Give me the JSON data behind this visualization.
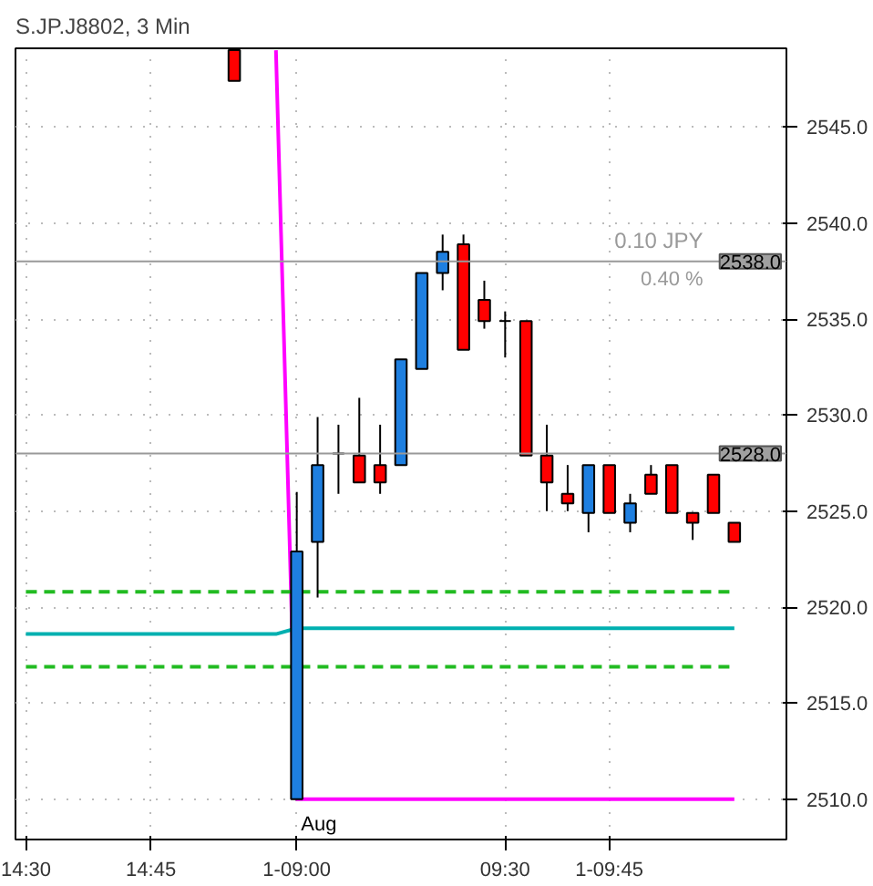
{
  "chart_data": {
    "type": "candlestick",
    "title": "S.JP.J8802, 3 Min",
    "categories": [
      "14:30",
      null,
      null,
      null,
      null,
      null,
      "14:45",
      null,
      null,
      null,
      null,
      null,
      null,
      "1-09:00",
      null,
      null,
      null,
      null,
      null,
      null,
      null,
      null,
      null,
      "09:30",
      null,
      null,
      null,
      null,
      "1-09:45",
      null,
      null,
      null,
      null,
      null,
      null,
      null,
      null
    ],
    "ohlc": [
      null,
      null,
      null,
      null,
      null,
      null,
      null,
      null,
      null,
      null,
      [
        2549.0,
        2549.0,
        2547.4,
        2547.4
      ],
      null,
      null,
      [
        2510.0,
        2526.0,
        2510.0,
        2522.9
      ],
      [
        2523.4,
        2529.9,
        2520.5,
        2527.4
      ],
      [
        2528.0,
        2529.5,
        2525.9,
        2528.0
      ],
      [
        2527.9,
        2530.9,
        2526.5,
        2526.5
      ],
      [
        2527.4,
        2529.5,
        2525.9,
        2526.5
      ],
      [
        2527.4,
        2532.9,
        2527.4,
        2532.9
      ],
      [
        2532.4,
        2537.4,
        2532.4,
        2537.4
      ],
      [
        2537.4,
        2539.4,
        2536.5,
        2538.5
      ],
      [
        2538.9,
        2539.4,
        2533.4,
        2533.4
      ],
      [
        2536.0,
        2537.0,
        2534.5,
        2534.9
      ],
      [
        2534.9,
        2535.4,
        2533.0,
        2534.9
      ],
      [
        2534.9,
        2534.9,
        2527.9,
        2527.9
      ],
      [
        2527.9,
        2529.5,
        2525.0,
        2526.5
      ],
      [
        2525.9,
        2527.4,
        2525.0,
        2525.4
      ],
      [
        2524.9,
        2527.4,
        2523.9,
        2527.4
      ],
      [
        2527.4,
        2527.4,
        2524.9,
        2524.9
      ],
      [
        2524.4,
        2525.9,
        2523.9,
        2525.4
      ],
      [
        2526.9,
        2527.4,
        2525.9,
        2525.9
      ],
      [
        2527.4,
        2527.4,
        2524.9,
        2524.9
      ],
      [
        2524.9,
        2524.9,
        2523.5,
        2524.4
      ],
      [
        2526.9,
        2526.9,
        2524.9,
        2524.9
      ],
      [
        2524.4,
        2524.4,
        2523.4,
        2523.4
      ],
      null,
      null
    ],
    "colors": [
      null,
      null,
      null,
      null,
      null,
      null,
      null,
      null,
      null,
      null,
      "#ff0000",
      null,
      null,
      "#1e7fe0",
      "#1e7fe0",
      "#000000",
      "#ff0000",
      "#ff0000",
      "#1e7fe0",
      "#1e7fe0",
      "#1e7fe0",
      "#ff0000",
      "#ff0000",
      "#000000",
      "#ff0000",
      "#ff0000",
      "#ff0000",
      "#1e7fe0",
      "#ff0000",
      "#1e7fe0",
      "#ff0000",
      "#ff0000",
      "#ff0000",
      "#ff0000",
      "#ff0000",
      null,
      null
    ],
    "series": [
      {
        "type": "line",
        "color": "#ff00ff",
        "line_style": "solid",
        "values": [
          null,
          null,
          null,
          null,
          null,
          null,
          null,
          null,
          null,
          null,
          null,
          null,
          2549.0,
          2510.0,
          2510.0,
          2510.0,
          2510.0,
          2510.0,
          2510.0,
          2510.0,
          2510.0,
          2510.0,
          2510.0,
          2510.0,
          2510.0,
          2510.0,
          2510.0,
          2510.0,
          2510.0,
          2510.0,
          2510.0,
          2510.0,
          2510.0,
          2510.0,
          2510.0,
          null,
          null
        ]
      },
      {
        "type": "line",
        "color": "#00b0b0",
        "line_style": "solid",
        "values": [
          2518.6,
          2518.6,
          2518.6,
          2518.6,
          2518.6,
          2518.6,
          2518.6,
          2518.6,
          2518.6,
          2518.6,
          2518.6,
          2518.6,
          2518.6,
          2518.9,
          2518.9,
          2518.9,
          2518.9,
          2518.9,
          2518.9,
          2518.9,
          2518.9,
          2518.9,
          2518.9,
          2518.9,
          2518.9,
          2518.9,
          2518.9,
          2518.9,
          2518.9,
          2518.9,
          2518.9,
          2518.9,
          2518.9,
          2518.9,
          2518.9,
          null,
          null
        ]
      },
      {
        "type": "line",
        "color": "#22bb22",
        "line_style": "dashed",
        "values": [
          2520.8,
          2520.8,
          2520.8,
          2520.8,
          2520.8,
          2520.8,
          2520.8,
          2520.8,
          2520.8,
          2520.8,
          2520.8,
          2520.8,
          2520.8,
          2520.8,
          2520.8,
          2520.8,
          2520.8,
          2520.8,
          2520.8,
          2520.8,
          2520.8,
          2520.8,
          2520.8,
          2520.8,
          2520.8,
          2520.8,
          2520.8,
          2520.8,
          2520.8,
          2520.8,
          2520.8,
          2520.8,
          2520.8,
          2520.8,
          2520.8,
          null,
          null
        ]
      },
      {
        "type": "line",
        "color": "#22bb22",
        "line_style": "dashed",
        "values": [
          2516.9,
          2516.9,
          2516.9,
          2516.9,
          2516.9,
          2516.9,
          2516.9,
          2516.9,
          2516.9,
          2516.9,
          2516.9,
          2516.9,
          2516.9,
          2516.9,
          2516.9,
          2516.9,
          2516.9,
          2516.9,
          2516.9,
          2516.9,
          2516.9,
          2516.9,
          2516.9,
          2516.9,
          2516.9,
          2516.9,
          2516.9,
          2516.9,
          2516.9,
          2516.9,
          2516.9,
          2516.9,
          2516.9,
          2516.9,
          2516.9,
          null,
          null
        ]
      }
    ],
    "ref_lines": [
      {
        "axis": "y",
        "value": 2538.0,
        "label": "2538.0",
        "color": "#999999"
      },
      {
        "axis": "y",
        "value": 2528.0,
        "label": "2528.0",
        "color": "#999999"
      }
    ],
    "annotations": [
      "0.10 JPY",
      "0.40 %",
      "Aug"
    ],
    "ylim": [
      2507.9,
      2549.1
    ],
    "yticks": [
      {
        "value": 2510,
        "label": "2510.0"
      },
      {
        "value": 2515,
        "label": "2515.0"
      },
      {
        "value": 2520,
        "label": "2520.0"
      },
      {
        "value": 2525,
        "label": "2525.0"
      },
      {
        "value": 2530,
        "label": "2530.0"
      },
      {
        "value": 2535,
        "label": "2535.0"
      },
      {
        "value": 2540,
        "label": "2540.0"
      },
      {
        "value": 2545,
        "label": "2545.0"
      }
    ],
    "grid": true
  }
}
